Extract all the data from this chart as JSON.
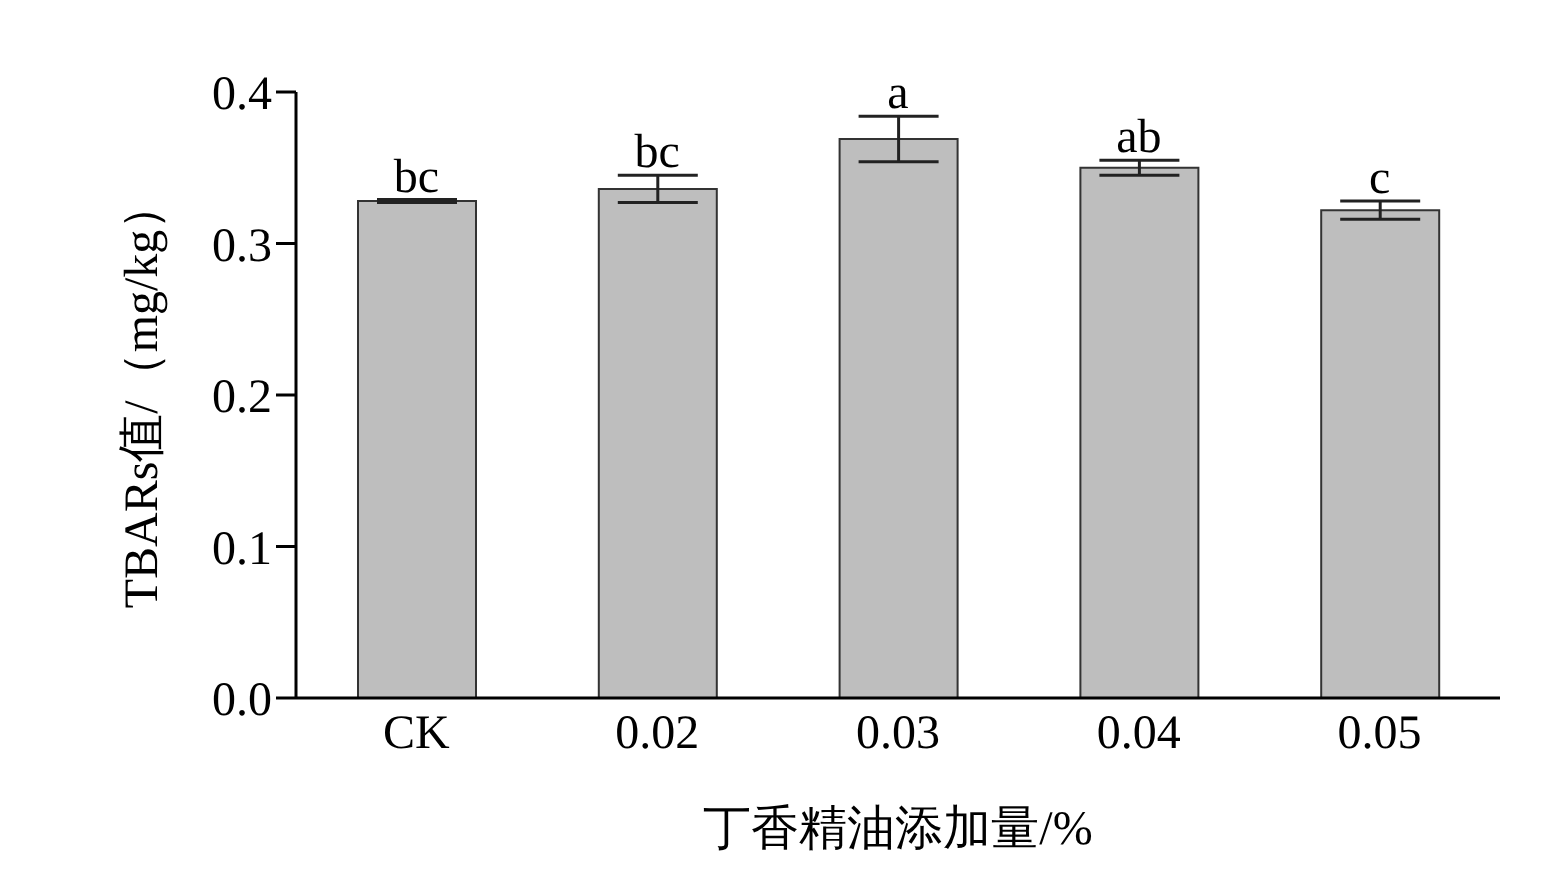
{
  "chart_data": {
    "type": "bar",
    "xlabel": "丁香精油添加量/%",
    "ylabel": "TBARs值/（mg/kg）",
    "categories": [
      "CK",
      "0.02",
      "0.03",
      "0.04",
      "0.05"
    ],
    "values": [
      0.328,
      0.336,
      0.369,
      0.35,
      0.322
    ],
    "errors": [
      0.001,
      0.009,
      0.015,
      0.005,
      0.006
    ],
    "color": "#bebebe",
    "ylim": [
      0,
      0.4
    ],
    "yticks": [
      {
        "value": 0,
        "label": "0.0"
      },
      0.1,
      0.2,
      0.3,
      0.4
    ],
    "grid": false,
    "annotations": [
      {
        "text": "bc",
        "x": "CK",
        "y": 0.329
      },
      {
        "text": "bc",
        "x": "0.02",
        "y": 0.345
      },
      {
        "text": "a",
        "x": "0.03",
        "y": 0.384
      },
      {
        "text": "ab",
        "x": "0.04",
        "y": 0.355
      },
      {
        "text": "c",
        "x": "0.05",
        "y": 0.328
      }
    ]
  }
}
